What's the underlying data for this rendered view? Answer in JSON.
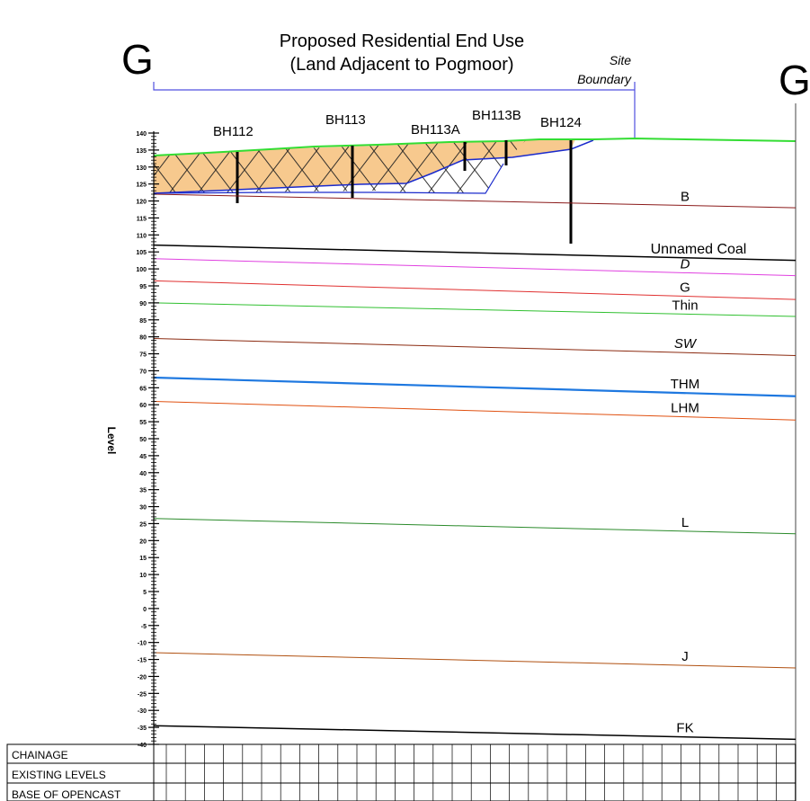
{
  "section_letter": "G",
  "title_line1": "Proposed Residential End Use",
  "title_line2": "(Land Adjacent to Pogmoor)",
  "site_boundary_line1": "Site",
  "site_boundary_line2": "Boundary",
  "y_axis_label": "Level",
  "y_axis_ticks": [
    "140",
    "135",
    "130",
    "125",
    "120",
    "115",
    "110",
    "105",
    "100",
    "95",
    "90",
    "85",
    "80",
    "75",
    "70",
    "65",
    "60",
    "55",
    "50",
    "45",
    "40",
    "35",
    "30",
    "25",
    "20",
    "15",
    "10",
    "5",
    "0",
    "-5",
    "-10",
    "-15",
    "-20",
    "-25",
    "-30",
    "-35",
    "-40"
  ],
  "boreholes": [
    {
      "name": "BH112"
    },
    {
      "name": "BH113"
    },
    {
      "name": "BH113A"
    },
    {
      "name": "BH113B"
    },
    {
      "name": "BH124"
    }
  ],
  "seams": [
    {
      "name": "B",
      "color": "#8b1a1a",
      "left_level": 122,
      "right_level": 118
    },
    {
      "name": "Unnamed Coal",
      "color": "#000000",
      "left_level": 107,
      "right_level": 102.5
    },
    {
      "name": "D",
      "color": "#e040e0",
      "left_level": 103,
      "right_level": 98
    },
    {
      "name": "G",
      "color": "#e03030",
      "left_level": 96.5,
      "right_level": 91
    },
    {
      "name": "Thin",
      "color": "#30c030",
      "left_level": 90,
      "right_level": 86
    },
    {
      "name": "SW",
      "color": "#8b2a10",
      "left_level": 79.5,
      "right_level": 74.5
    },
    {
      "name": "THM",
      "color": "#1e78e0",
      "left_level": 68,
      "right_level": 62.5
    },
    {
      "name": "LHM",
      "color": "#e05010",
      "left_level": 61,
      "right_level": 55.5
    },
    {
      "name": "L",
      "color": "#2a8a2a",
      "left_level": 26.5,
      "right_level": 22
    },
    {
      "name": "J",
      "color": "#b05010",
      "left_level": -13,
      "right_level": -17.5
    },
    {
      "name": "FK",
      "color": "#000000",
      "left_level": -34.5,
      "right_level": -38.5
    }
  ],
  "colors": {
    "ground_line": "#33dd33",
    "opencast_fill": "#f7c98e",
    "opencast_base": "#1a2acc"
  },
  "table": {
    "rows": [
      "CHAINAGE",
      "EXISTING LEVELS",
      "BASE OF OPENCAST"
    ]
  }
}
